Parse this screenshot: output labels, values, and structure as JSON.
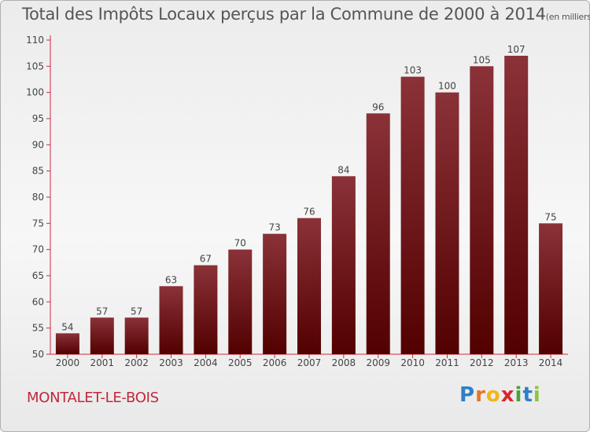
{
  "header": {
    "title": "Total des Impôts Locaux perçus par la Commune de 2000 à 2014",
    "unit": "(en milliers d'€)"
  },
  "footer": {
    "commune": "MONTALET-LE-BOIS",
    "logo_letters": [
      "P",
      "r",
      "o",
      "x",
      "i",
      "t",
      "i"
    ],
    "logo_colors": [
      "#2f7fc8",
      "#e8742a",
      "#f2b619",
      "#d9262e",
      "#4aa23b",
      "#2f7fc8",
      "#8cc63f"
    ]
  },
  "colors": {
    "bar_top": "#8a3238",
    "bar_bottom": "#520000",
    "axis": "#d22a3c",
    "text": "#444444"
  },
  "chart_data": {
    "type": "bar",
    "title": "Total des Impôts Locaux perçus par la Commune de 2000 à 2014",
    "xlabel": "",
    "ylabel": "en milliers d'€",
    "categories": [
      "2000",
      "2001",
      "2002",
      "2003",
      "2004",
      "2005",
      "2006",
      "2007",
      "2008",
      "2009",
      "2010",
      "2011",
      "2012",
      "2013",
      "2014"
    ],
    "values": [
      54,
      57,
      57,
      63,
      67,
      70,
      73,
      76,
      84,
      96,
      103,
      100,
      105,
      107,
      75
    ],
    "ylim": [
      50,
      110
    ],
    "yticks": [
      50,
      55,
      60,
      65,
      70,
      75,
      80,
      85,
      90,
      95,
      100,
      105,
      110
    ],
    "grid": false,
    "data_labels": true
  }
}
